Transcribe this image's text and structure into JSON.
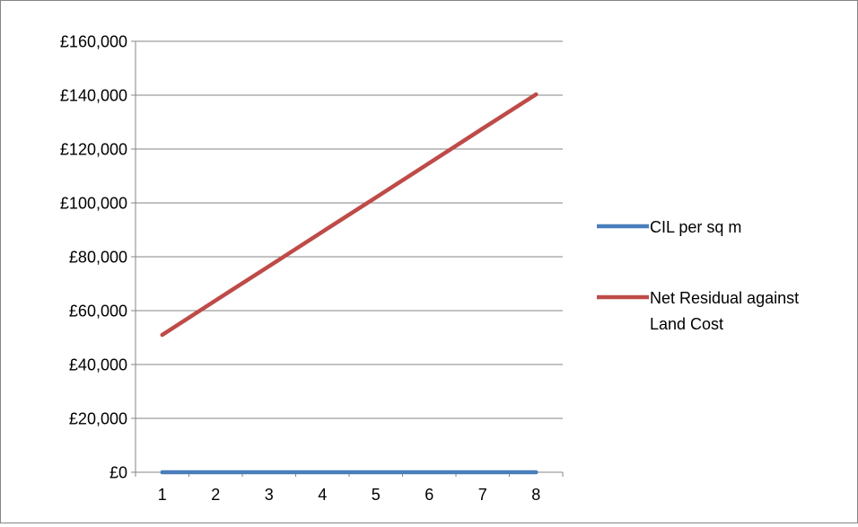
{
  "chart_data": {
    "type": "line",
    "title": "",
    "xlabel": "",
    "ylabel": "",
    "x": [
      "1",
      "2",
      "3",
      "4",
      "5",
      "6",
      "7",
      "8"
    ],
    "ylim": [
      0,
      160000
    ],
    "yticks": [
      0,
      20000,
      40000,
      60000,
      80000,
      100000,
      120000,
      140000,
      160000
    ],
    "ytick_labels": [
      "£0",
      "£20,000",
      "£40,000",
      "£60,000",
      "£80,000",
      "£100,000",
      "£120,000",
      "£140,000",
      "£160,000"
    ],
    "grid": "horizontal",
    "legend": "right",
    "series": [
      {
        "name": "CIL per sq m",
        "color": "#4A7EBB",
        "values": [
          0,
          0,
          0,
          0,
          0,
          0,
          0,
          0
        ]
      },
      {
        "name": "Net Residual against Land Cost",
        "color": "#BE4B48",
        "values": [
          51000,
          63800,
          76500,
          89300,
          102000,
          114800,
          127600,
          140300
        ]
      }
    ]
  }
}
